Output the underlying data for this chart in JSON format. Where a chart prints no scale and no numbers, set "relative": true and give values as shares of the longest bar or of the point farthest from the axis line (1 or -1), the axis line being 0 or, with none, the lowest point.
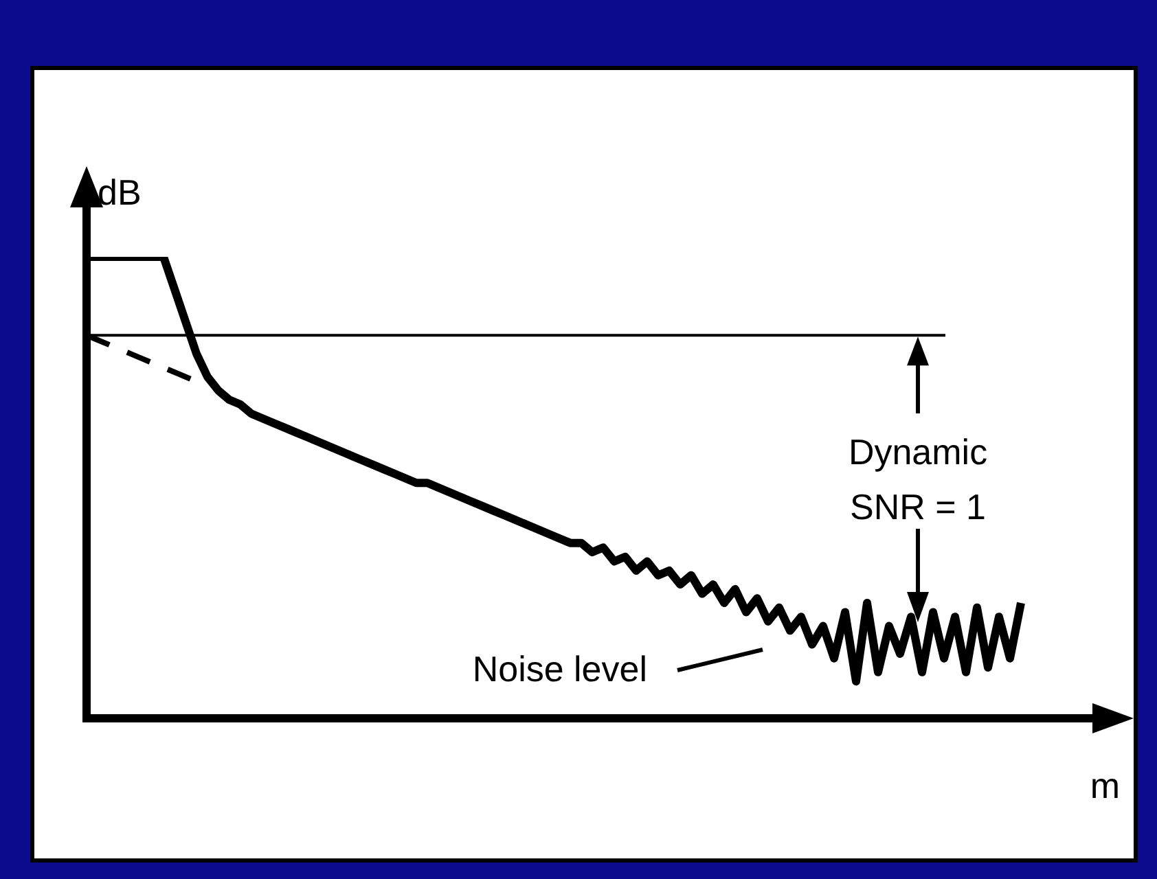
{
  "chart_data": {
    "type": "line",
    "relative": true,
    "tick_labels": false,
    "xlabel": "m",
    "ylabel": "dB",
    "categories": [
      null,
      null,
      null,
      null,
      null,
      null,
      null,
      null,
      null,
      null,
      null,
      null,
      null,
      null,
      null,
      null,
      null,
      null,
      null,
      null,
      null,
      null,
      null,
      null,
      null,
      null,
      null,
      null,
      null,
      null,
      null,
      null,
      null,
      null,
      null,
      null,
      null,
      null,
      null,
      null,
      null,
      null,
      null,
      null,
      null,
      null,
      null,
      null,
      null,
      null,
      null,
      null,
      null,
      null,
      null,
      null,
      null,
      null,
      null,
      null,
      null,
      null,
      null,
      null,
      null,
      null,
      null,
      null,
      null,
      null,
      null,
      null,
      null,
      null,
      null,
      null,
      null,
      null,
      null,
      null,
      null,
      null,
      null,
      null,
      null,
      null
    ],
    "series": [
      {
        "color": "#000000",
        "line_style": "solid",
        "values": [
          1.0,
          1.0,
          1.0,
          1.0,
          1.0,
          1.0,
          1.0,
          1.0,
          0.93,
          0.86,
          0.79,
          0.74,
          0.71,
          0.69,
          0.68,
          0.66,
          0.65,
          0.64,
          0.63,
          0.62,
          0.61,
          0.6,
          0.59,
          0.58,
          0.57,
          0.56,
          0.55,
          0.54,
          0.53,
          0.52,
          0.51,
          0.51,
          0.5,
          0.49,
          0.48,
          0.47,
          0.46,
          0.45,
          0.44,
          0.43,
          0.42,
          0.41,
          0.4,
          0.39,
          0.38,
          0.38,
          0.36,
          0.37,
          0.34,
          0.35,
          0.32,
          0.34,
          0.31,
          0.32,
          0.29,
          0.31,
          0.27,
          0.29,
          0.25,
          0.28,
          0.23,
          0.26,
          0.21,
          0.24,
          0.19,
          0.22,
          0.16,
          0.2,
          0.13,
          0.23,
          0.08,
          0.25,
          0.1,
          0.2,
          0.14,
          0.22,
          0.1,
          0.23,
          0.13,
          0.22,
          0.1,
          0.24,
          0.11,
          0.22,
          0.13,
          0.25
        ]
      },
      {
        "color": "#000000",
        "line_style": "dashed",
        "values": [
          0.83,
          0.82,
          0.81,
          0.8,
          0.79,
          0.78,
          0.77,
          0.76,
          0.75,
          0.74,
          0.73,
          0.72,
          null,
          null,
          null,
          null,
          null,
          null,
          null,
          null,
          null,
          null,
          null,
          null,
          null,
          null,
          null,
          null,
          null,
          null,
          null,
          null,
          null,
          null,
          null,
          null,
          null,
          null,
          null,
          null,
          null,
          null,
          null,
          null,
          null,
          null,
          null,
          null,
          null,
          null,
          null,
          null,
          null,
          null,
          null,
          null,
          null,
          null,
          null,
          null,
          null,
          null,
          null,
          null,
          null,
          null,
          null,
          null,
          null,
          null,
          null,
          null,
          null,
          null,
          null,
          null,
          null,
          null,
          null,
          null,
          null,
          null,
          null,
          null,
          null,
          null
        ]
      }
    ],
    "ref_lines": [
      {
        "axis": "y",
        "value": 0.83,
        "color": "#000000"
      }
    ],
    "annotations": [
      "Dynamic\nSNR = 1",
      "Noise level"
    ]
  }
}
